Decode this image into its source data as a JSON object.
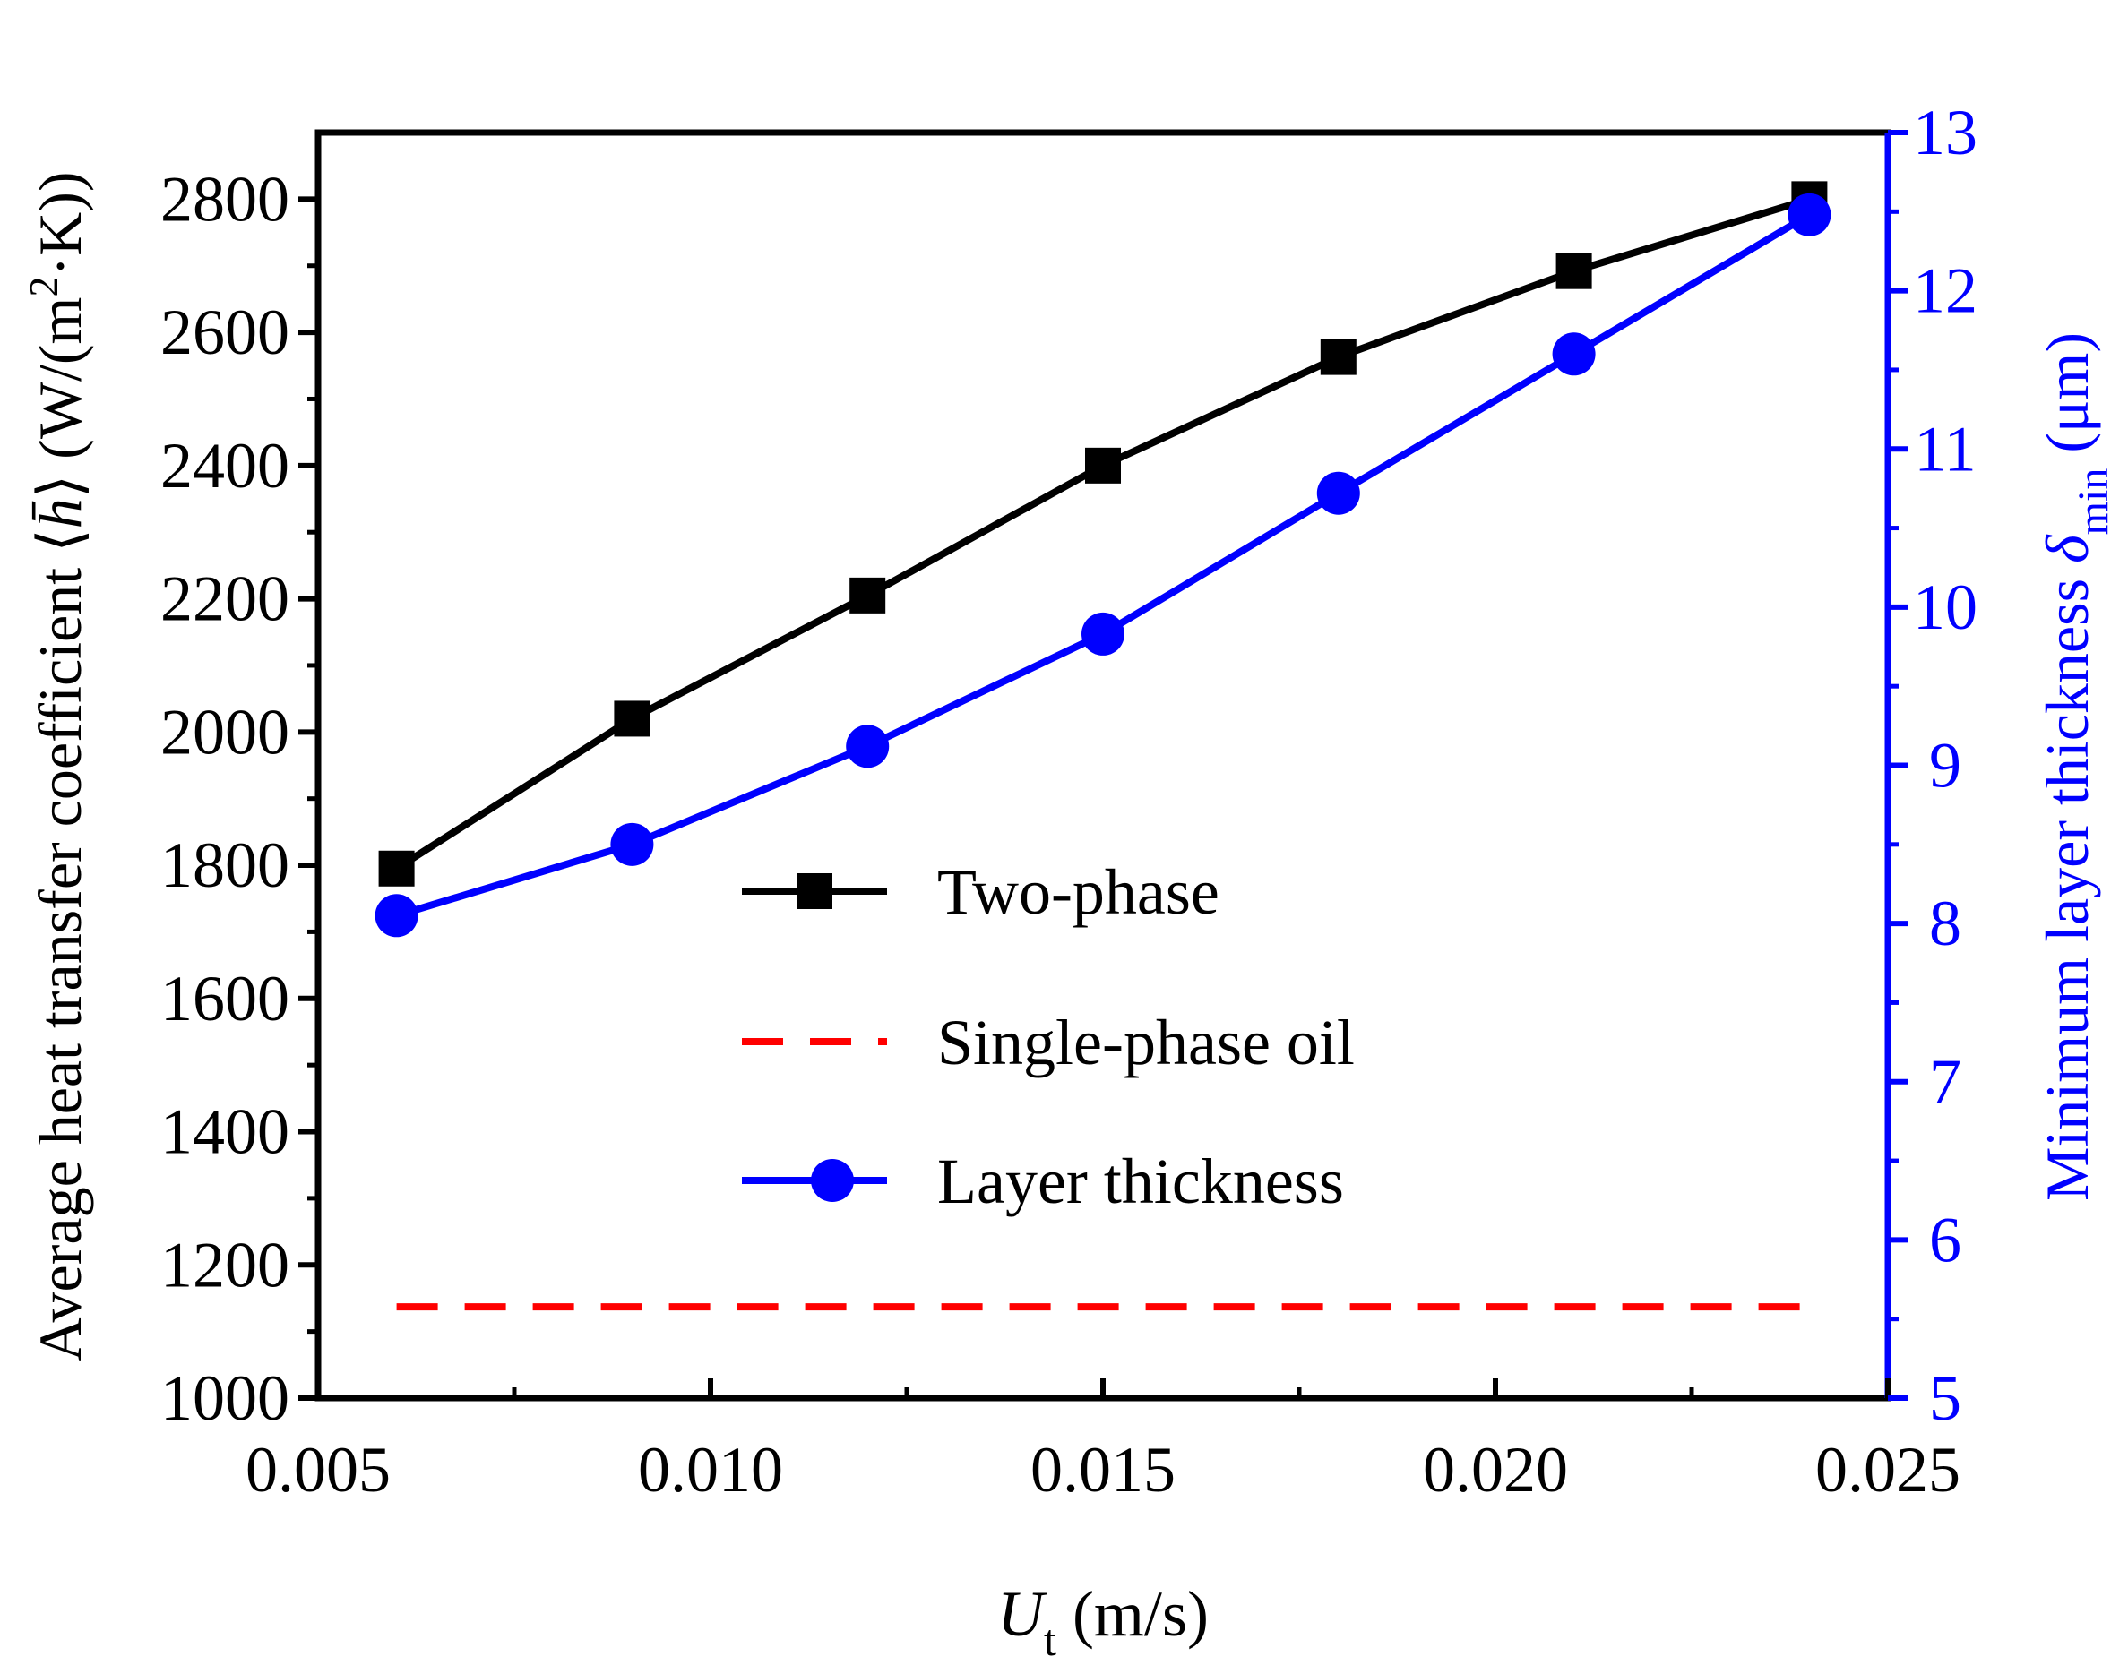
{
  "chart_data": {
    "type": "line",
    "title": "",
    "x": [
      0.006,
      0.009,
      0.012,
      0.015,
      0.018,
      0.021,
      0.024
    ],
    "xlim": [
      0.005,
      0.025
    ],
    "x_ticks": [
      "0.005",
      "0.010",
      "0.015",
      "0.020",
      "0.025"
    ],
    "x_tick_values": [
      0.005,
      0.01,
      0.015,
      0.02,
      0.025
    ],
    "xlabel": {
      "symbol": "U",
      "subscript": "t",
      "unit": " (m/s)"
    },
    "y_left": {
      "label": "Average heat transfer coefficient ⟨h̄⟩ (W/(m²·K))",
      "label_main": "Average heat transfer coefficient ⟨",
      "label_symbol": "h̄",
      "label_unit_a": "⟩ (W/(m",
      "label_sup": "2",
      "label_unit_b": "·K))",
      "ylim": [
        1000,
        2900
      ],
      "ticks": [
        "1000",
        "1200",
        "1400",
        "1600",
        "1800",
        "2000",
        "2200",
        "2400",
        "2600",
        "2800"
      ],
      "tick_values": [
        1000,
        1200,
        1400,
        1600,
        1800,
        2000,
        2200,
        2400,
        2600,
        2800
      ],
      "color": "#000000"
    },
    "y_right": {
      "label_main": "Minimum layer thickness ",
      "label_symbol": "δ",
      "label_sub": "min",
      "label_unit": " (μm)",
      "ylim": [
        5,
        13
      ],
      "ticks": [
        "5",
        "6",
        "7",
        "8",
        "9",
        "10",
        "11",
        "12",
        "13"
      ],
      "tick_values": [
        5,
        6,
        7,
        8,
        9,
        10,
        11,
        12,
        13
      ],
      "color": "#0000ff"
    },
    "series": [
      {
        "name": "Two-phase",
        "axis": "left",
        "color": "#000000",
        "marker": "square",
        "values": [
          1795,
          2020,
          2205,
          2400,
          2563,
          2692,
          2800
        ]
      },
      {
        "name": "Single-phase oil",
        "axis": "left",
        "color": "#ff0000",
        "style": "dashed",
        "marker": "none",
        "x_range": [
          0.006,
          0.024
        ],
        "value": 1137
      },
      {
        "name": "Layer thickness",
        "axis": "right",
        "color": "#0000ff",
        "marker": "circle",
        "values": [
          8.05,
          8.5,
          9.12,
          9.83,
          10.72,
          11.6,
          12.48
        ]
      }
    ],
    "legend": {
      "placement": "center",
      "entries": [
        "Two-phase",
        "Single-phase oil",
        "Layer thickness"
      ]
    },
    "grid": false
  }
}
